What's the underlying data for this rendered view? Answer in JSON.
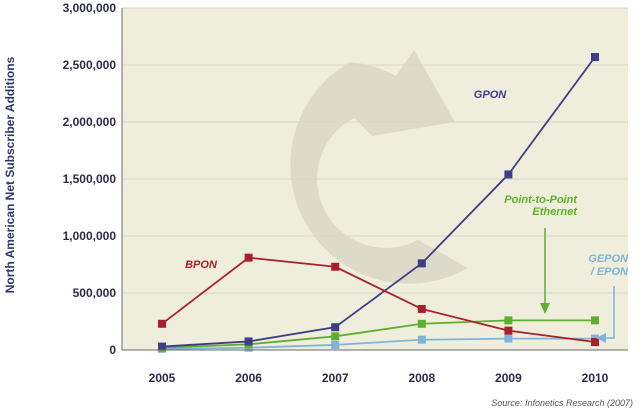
{
  "chart_data": {
    "type": "line",
    "ylabel": "North American Net Subscriber Additions",
    "source": "Source: Infonetics Research (2007)",
    "ylim": [
      0,
      3000000
    ],
    "yticks": [
      0,
      500000,
      1000000,
      1500000,
      2000000,
      2500000,
      3000000
    ],
    "ytick_labels": [
      "0",
      "500,000",
      "1,000,000",
      "1,500,000",
      "2,000,000",
      "2,500,000",
      "3,000,000"
    ],
    "categories": [
      "2005",
      "2006",
      "2007",
      "2008",
      "2009",
      "2010"
    ],
    "grid": true,
    "background": "#efeedd",
    "series": [
      {
        "name": "BPON",
        "label_lines": [
          "BPON"
        ],
        "color": "#a8202c",
        "values": [
          230000,
          810000,
          730000,
          360000,
          170000,
          70000
        ]
      },
      {
        "name": "GPON",
        "label_lines": [
          "GPON"
        ],
        "color": "#3e3d86",
        "values": [
          30000,
          75000,
          200000,
          760000,
          1540000,
          2570000
        ]
      },
      {
        "name": "Point-to-Point Ethernet",
        "label_lines": [
          "Point-to-Point",
          "Ethernet"
        ],
        "color": "#5fae2e",
        "values": [
          20000,
          50000,
          120000,
          230000,
          260000,
          260000
        ]
      },
      {
        "name": "GEPON / EPON",
        "label_lines": [
          "GEPON",
          "/ EPON"
        ],
        "color": "#7fb3d8",
        "values": [
          10000,
          20000,
          45000,
          90000,
          100000,
          100000
        ]
      }
    ]
  }
}
